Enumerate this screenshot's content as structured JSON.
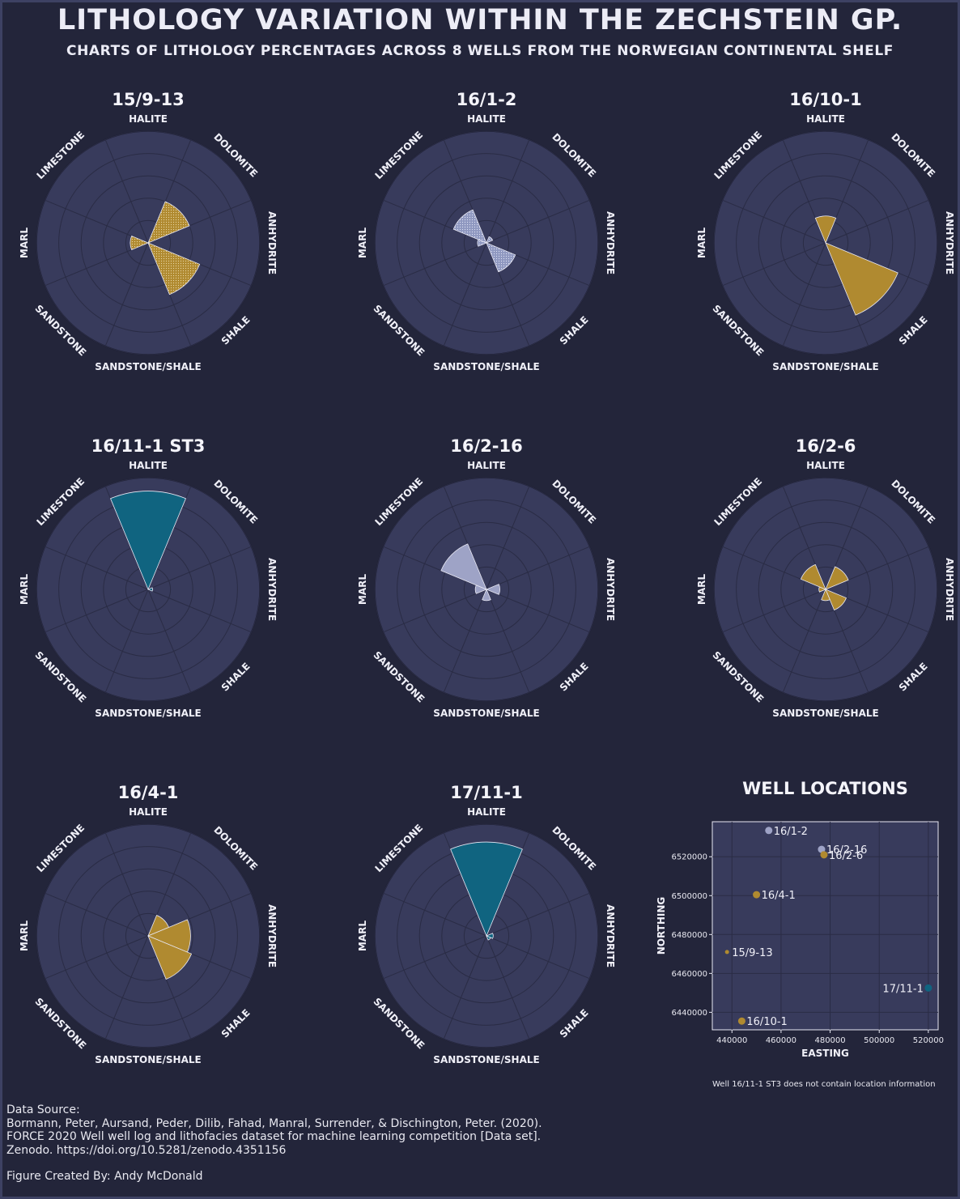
{
  "title": "LITHOLOGY VARIATION WITHIN THE ZECHSTEIN GP.",
  "subtitle": "CHARTS OF LITHOLOGY PERCENTAGES ACROSS 8 WELLS FROM THE NORWEGIAN CONTINENTAL SHELF",
  "chart_data": [
    {
      "type": "polar_bar",
      "title": "15/9-13",
      "categories": [
        "HALITE",
        "DOLOMITE",
        "ANHYDRITE",
        "SHALE",
        "SANDSTONE/SHALE",
        "SANDSTONE",
        "MARL",
        "LIMESTONE"
      ],
      "values": [
        0,
        20,
        0,
        25,
        0,
        0,
        8,
        0
      ],
      "ylim": [
        0,
        50
      ],
      "color": "#b08a30",
      "hatched": true
    },
    {
      "type": "polar_bar",
      "title": "16/1-2",
      "categories": [
        "HALITE",
        "DOLOMITE",
        "ANHYDRITE",
        "SHALE",
        "SANDSTONE/SHALE",
        "SANDSTONE",
        "MARL",
        "LIMESTONE"
      ],
      "values": [
        0,
        3,
        0,
        14,
        0,
        0,
        4,
        16
      ],
      "ylim": [
        0,
        50
      ],
      "color": "#8f98c0",
      "hatched": true
    },
    {
      "type": "polar_bar",
      "title": "16/10-1",
      "categories": [
        "HALITE",
        "DOLOMITE",
        "ANHYDRITE",
        "SHALE",
        "SANDSTONE/SHALE",
        "SANDSTONE",
        "MARL",
        "LIMESTONE"
      ],
      "values": [
        12,
        0,
        0,
        35,
        0,
        0,
        0,
        0
      ],
      "ylim": [
        0,
        50
      ],
      "color": "#b08a30",
      "hatched": false
    },
    {
      "type": "polar_bar",
      "title": "16/11-1 ST3",
      "categories": [
        "HALITE",
        "DOLOMITE",
        "ANHYDRITE",
        "SHALE",
        "SANDSTONE/SHALE",
        "SANDSTONE",
        "MARL",
        "LIMESTONE"
      ],
      "values": [
        44,
        0,
        2,
        0,
        0,
        0,
        0,
        0
      ],
      "ylim": [
        0,
        50
      ],
      "color": "#106480",
      "hatched": false
    },
    {
      "type": "polar_bar",
      "title": "16/2-16",
      "categories": [
        "HALITE",
        "DOLOMITE",
        "ANHYDRITE",
        "SHALE",
        "SANDSTONE/SHALE",
        "SANDSTONE",
        "MARL",
        "LIMESTONE"
      ],
      "values": [
        0,
        0,
        6,
        0,
        5,
        0,
        5,
        22
      ],
      "ylim": [
        0,
        50
      ],
      "color": "#9ea3c6",
      "hatched": false
    },
    {
      "type": "polar_bar",
      "title": "16/2-6",
      "categories": [
        "HALITE",
        "DOLOMITE",
        "ANHYDRITE",
        "SHALE",
        "SANDSTONE/SHALE",
        "SANDSTONE",
        "MARL",
        "LIMESTONE"
      ],
      "values": [
        0,
        11,
        0,
        10,
        5,
        0,
        3,
        12
      ],
      "ylim": [
        0,
        50
      ],
      "color": "#b08a30",
      "hatched": false
    },
    {
      "type": "polar_bar",
      "title": "16/4-1",
      "categories": [
        "HALITE",
        "DOLOMITE",
        "ANHYDRITE",
        "SHALE",
        "SANDSTONE/SHALE",
        "SANDSTONE",
        "MARL",
        "LIMESTONE"
      ],
      "values": [
        0,
        10,
        19,
        21,
        0,
        0,
        0,
        0
      ],
      "ylim": [
        0,
        50
      ],
      "color": "#b08a30",
      "hatched": false
    },
    {
      "type": "polar_bar",
      "title": "17/11-1",
      "categories": [
        "HALITE",
        "DOLOMITE",
        "ANHYDRITE",
        "SHALE",
        "SANDSTONE/SHALE",
        "SANDSTONE",
        "MARL",
        "LIMESTONE"
      ],
      "values": [
        42,
        0,
        3,
        2,
        0,
        0,
        0,
        0
      ],
      "ylim": [
        0,
        50
      ],
      "color": "#106480",
      "hatched": false
    },
    {
      "type": "scatter",
      "title": "WELL LOCATIONS",
      "xlabel": "EASTING",
      "ylabel": "NORTHING",
      "xlim": [
        432000,
        524000
      ],
      "ylim": [
        6431000,
        6538000
      ],
      "xticks": [
        440000,
        460000,
        480000,
        500000,
        520000
      ],
      "yticks": [
        6440000,
        6460000,
        6480000,
        6500000,
        6520000
      ],
      "note": "Well 16/11-1 ST3 does not contain location information",
      "points": [
        {
          "label": "16/1-2",
          "x": 455000,
          "y": 6533500,
          "color": "#9ea3c6"
        },
        {
          "label": "16/2-16",
          "x": 476500,
          "y": 6523800,
          "color": "#9ea3c6"
        },
        {
          "label": "16/2-6",
          "x": 477500,
          "y": 6521000,
          "color": "#b08a30"
        },
        {
          "label": "16/4-1",
          "x": 450000,
          "y": 6500500,
          "color": "#b08a30"
        },
        {
          "label": "15/9-13",
          "x": 438000,
          "y": 6471000,
          "color": "#b08a30"
        },
        {
          "label": "17/11-1",
          "x": 520000,
          "y": 6452500,
          "color": "#106480"
        },
        {
          "label": "16/10-1",
          "x": 444000,
          "y": 6435500,
          "color": "#b08a30"
        }
      ]
    }
  ],
  "footer": {
    "source_heading": "Data Source:",
    "source_line1": "Bormann, Peter, Aursand, Peder, Dilib, Fahad, Manral, Surrender, & Dischington, Peter. (2020).",
    "source_line2": "FORCE 2020 Well well log and lithofacies dataset for machine learning competition [Data set].",
    "source_line3": "Zenodo. https://doi.org/10.5281/zenodo.4351156",
    "credit": "Figure Created By: Andy McDonald"
  }
}
